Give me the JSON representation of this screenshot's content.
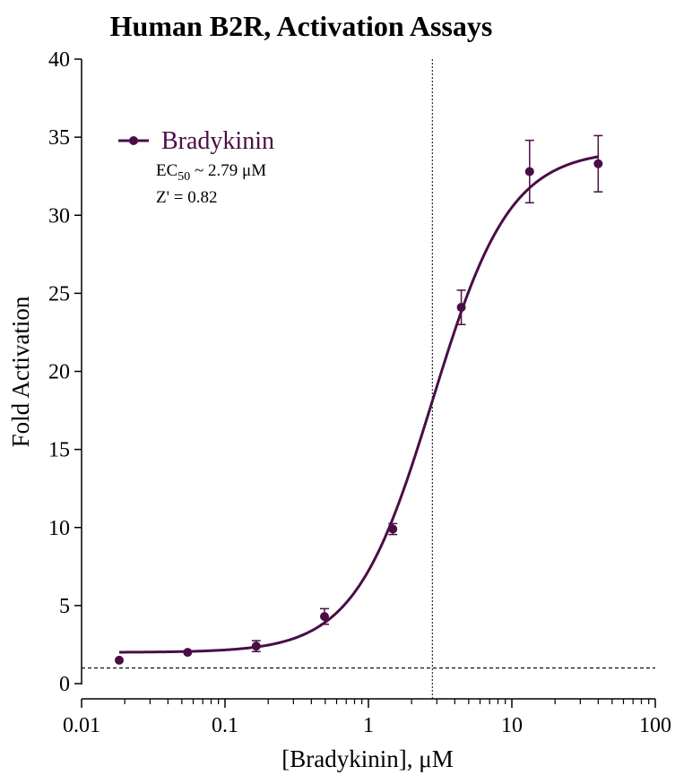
{
  "chart_data": {
    "type": "scatter",
    "title": "Human B2R, Activation Assays",
    "xlabel": "[Bradykinin], μM",
    "ylabel": "Fold Activation",
    "x_scale": "log",
    "xlim": [
      0.01,
      100
    ],
    "ylim": [
      0,
      40
    ],
    "x_ticks": [
      "0.01",
      "0.1",
      "1",
      "10",
      "100"
    ],
    "y_ticks": [
      "0",
      "5",
      "10",
      "15",
      "20",
      "25",
      "30",
      "35",
      "40"
    ],
    "grid": false,
    "legend_position": "top-left",
    "series": [
      {
        "name": "Bradykinin",
        "color": "#4a0e45",
        "x": [
          0.0183,
          0.0549,
          0.165,
          0.494,
          1.48,
          4.44,
          13.3,
          40.0
        ],
        "y": [
          1.5,
          2.0,
          2.4,
          4.3,
          9.9,
          24.1,
          32.8,
          33.3
        ],
        "error": [
          0.1,
          0.1,
          0.35,
          0.5,
          0.35,
          1.1,
          2.0,
          1.8
        ]
      }
    ],
    "fit_curve": {
      "model": "4PL",
      "bottom": 2.0,
      "top": 34.2,
      "ec50": 2.79,
      "hill": 1.6,
      "color": "#4a0e45"
    },
    "annotations": {
      "ec50_prefix": "EC",
      "ec50_subscript": "50",
      "ec50_suffix": " ~ 2.79 μM",
      "z_prime": "Z' = 0.82"
    },
    "reference_lines": {
      "vertical_x": 2.79,
      "horizontal_y": 1.0
    }
  }
}
